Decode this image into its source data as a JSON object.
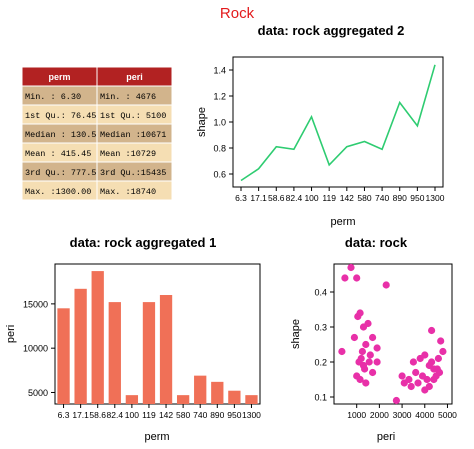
{
  "page_title": "Rock",
  "colors": {
    "title": "#e31a1c",
    "table_header": "#b22222",
    "table_row_dark": "#d2b48c",
    "table_row_light": "#f5deb3",
    "line": "#2ecc71",
    "bar": "#f07057",
    "point": "#e830a8"
  },
  "summary_table": {
    "headers": [
      "perm",
      "peri"
    ],
    "rows": [
      [
        "Min.   :   6.30",
        "Min.   : 4676"
      ],
      [
        "1st Qu.:  76.45",
        "1st Qu.: 5100"
      ],
      [
        "Median : 130.50",
        "Median :10671"
      ],
      [
        "Mean   : 415.45",
        "Mean   :10729"
      ],
      [
        "3rd Qu.: 777.50",
        "3rd Qu.:15435"
      ],
      [
        "Max.   :1300.00",
        "Max.   :18740"
      ]
    ]
  },
  "chart_data": [
    {
      "type": "line",
      "title": "data: rock aggregated 2",
      "xlabel": "perm",
      "ylabel": "shape",
      "categories": [
        "6.3",
        "17.1",
        "58.6",
        "82.4",
        "100",
        "119",
        "142",
        "580",
        "740",
        "890",
        "950",
        "1300"
      ],
      "values": [
        0.55,
        0.64,
        0.81,
        0.79,
        1.04,
        0.67,
        0.81,
        0.85,
        0.79,
        1.15,
        0.97,
        1.44
      ],
      "ylim": [
        0.5,
        1.5
      ],
      "yticks": [
        0.6,
        0.8,
        1.0,
        1.2,
        1.4
      ],
      "ytick_labels": [
        "0.6",
        "0.8",
        "1.0",
        "1.2",
        "1.4"
      ]
    },
    {
      "type": "bar",
      "title": "data: rock aggregated 1",
      "xlabel": "perm",
      "ylabel": "peri",
      "categories": [
        "6.3",
        "17.1",
        "58.6",
        "82.4",
        "100",
        "119",
        "142",
        "580",
        "740",
        "890",
        "950",
        "1300"
      ],
      "values": [
        14500,
        16700,
        18700,
        15200,
        4700,
        15200,
        16000,
        4700,
        6900,
        6200,
        5200,
        4700
      ],
      "ylim": [
        3700,
        19500
      ],
      "yticks": [
        5000,
        10000,
        15000
      ],
      "ytick_labels": [
        "5000",
        "10000",
        "15000"
      ]
    },
    {
      "type": "scatter",
      "title": "data: rock",
      "xlabel": "peri",
      "ylabel": "shape",
      "xlim": [
        0,
        5200
      ],
      "ylim": [
        0.08,
        0.48
      ],
      "xticks": [
        1000,
        2000,
        3000,
        4000,
        5000
      ],
      "xtick_labels": [
        "1000",
        "2000",
        "3000",
        "4000",
        "5000"
      ],
      "yticks": [
        0.1,
        0.2,
        0.3,
        0.4
      ],
      "ytick_labels": [
        "0.1",
        "0.2",
        "0.3",
        "0.4"
      ],
      "x": [
        480,
        750,
        1000,
        1050,
        1150,
        2300,
        350,
        1300,
        1500,
        1700,
        1900,
        1600,
        1400,
        1100,
        1200,
        1300,
        900,
        1000,
        1150,
        1350,
        1550,
        1700,
        1900,
        1250,
        1400,
        4300,
        4700,
        4800,
        4600,
        4000,
        3800,
        3500,
        4200,
        4400,
        3600,
        3900,
        4100,
        4500,
        4650,
        3300,
        3400,
        3700,
        4000,
        4200,
        4400,
        3000,
        3100,
        2750,
        4300,
        4550
      ],
      "y": [
        0.44,
        0.47,
        0.44,
        0.33,
        0.34,
        0.42,
        0.23,
        0.3,
        0.31,
        0.27,
        0.24,
        0.22,
        0.25,
        0.2,
        0.21,
        0.19,
        0.27,
        0.16,
        0.15,
        0.18,
        0.2,
        0.17,
        0.2,
        0.23,
        0.14,
        0.29,
        0.26,
        0.23,
        0.21,
        0.22,
        0.21,
        0.2,
        0.19,
        0.18,
        0.17,
        0.16,
        0.15,
        0.16,
        0.17,
        0.15,
        0.13,
        0.14,
        0.12,
        0.13,
        0.15,
        0.16,
        0.14,
        0.09,
        0.2,
        0.18
      ]
    }
  ]
}
